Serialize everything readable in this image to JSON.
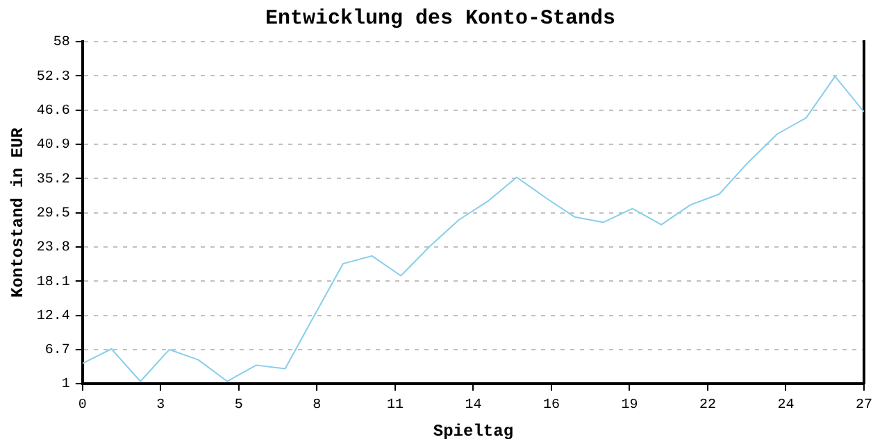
{
  "chart_data": {
    "type": "line",
    "title": "Entwicklung des Konto-Stands",
    "xlabel": "Spieltag",
    "ylabel": "Kontostand in EUR",
    "x": [
      0,
      1,
      2,
      3,
      4,
      5,
      6,
      7,
      8,
      9,
      10,
      11,
      12,
      13,
      14,
      15,
      16,
      17,
      18,
      19,
      20,
      21,
      22,
      23,
      24,
      25,
      26,
      27
    ],
    "series": [
      {
        "color": "#87ceeb",
        "values": [
          4.4,
          6.8,
          1.4,
          6.7,
          5.0,
          1.4,
          4.1,
          3.5,
          12.3,
          21.0,
          22.3,
          19.0,
          23.9,
          28.3,
          31.4,
          35.4,
          32.0,
          28.8,
          27.9,
          30.2,
          27.5,
          30.8,
          32.6,
          37.9,
          42.6,
          45.3,
          52.2,
          46.3
        ]
      }
    ],
    "xlim": [
      0,
      27
    ],
    "xticks": [
      0,
      {
        "value": 2.7,
        "label": "3"
      },
      {
        "value": 5.4,
        "label": "5"
      },
      {
        "value": 8.1,
        "label": "8"
      },
      {
        "value": 10.8,
        "label": "11"
      },
      {
        "value": 13.5,
        "label": "14"
      },
      {
        "value": 16.2,
        "label": "16"
      },
      {
        "value": 18.9,
        "label": "19"
      },
      {
        "value": 21.6,
        "label": "22"
      },
      {
        "value": 24.3,
        "label": "24"
      },
      27
    ],
    "ylim": [
      1,
      58
    ],
    "yticks": [
      1,
      6.7,
      12.4,
      18.1,
      23.8,
      29.5,
      35.2,
      40.9,
      46.6,
      52.3,
      58
    ],
    "grid": "y",
    "legend": false,
    "marker": "none",
    "line_style": "solid"
  }
}
